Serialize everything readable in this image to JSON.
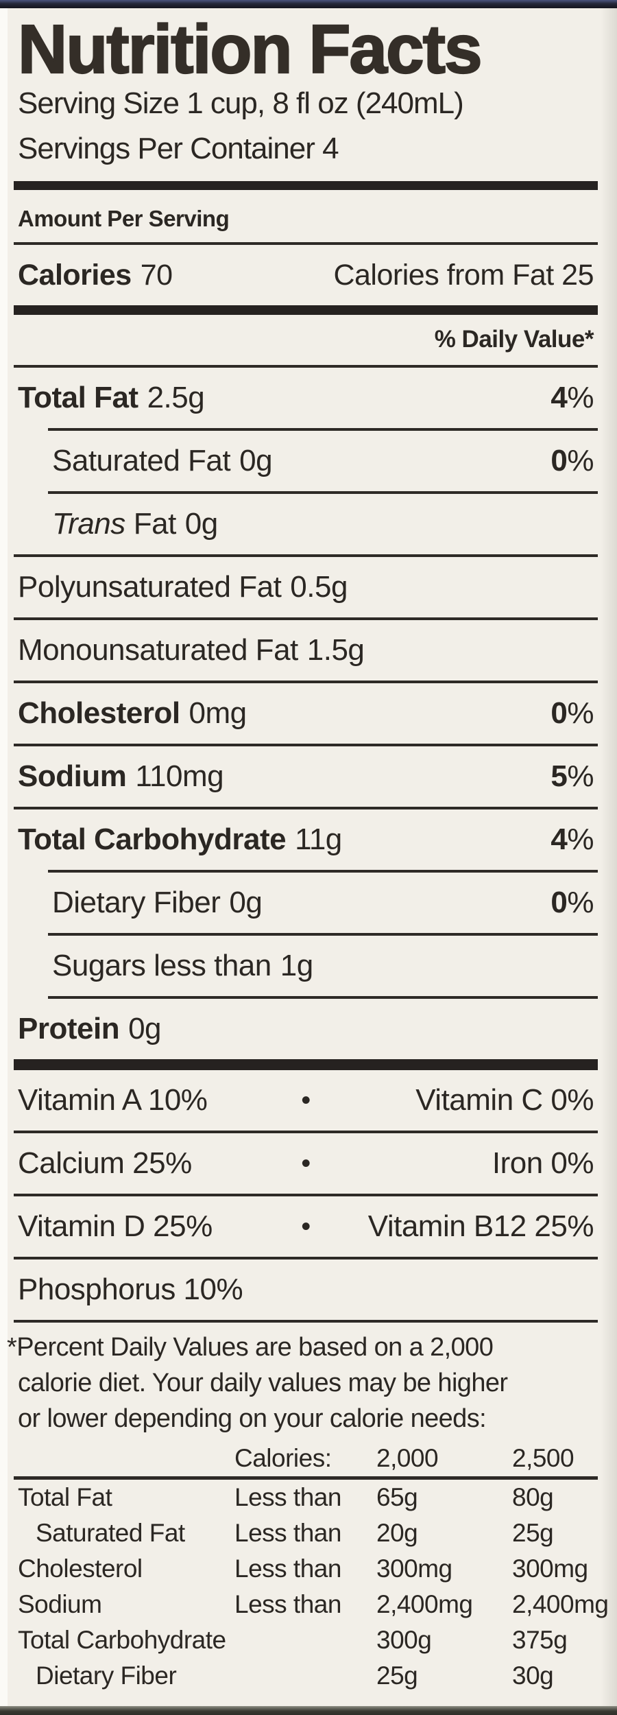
{
  "label": {
    "title": "Nutrition Facts",
    "serving_size": "Serving Size 1 cup, 8 fl oz (240mL)",
    "servings_per_container": "Servings Per Container 4",
    "amount_per_serving": "Amount Per Serving",
    "calories": {
      "label": "Calories",
      "value": "70",
      "from_fat": "Calories from Fat 25"
    },
    "daily_value_header": "% Daily Value*",
    "separator": "•",
    "nutrients": [
      {
        "name": "Total Fat",
        "amount": "2.5g",
        "dv": "4",
        "dv_sym": "%"
      },
      {
        "name": "Saturated Fat",
        "amount": "0g",
        "dv": "0",
        "dv_sym": "%"
      },
      {
        "name_italic": "Trans",
        "name": "Fat",
        "amount": "0g"
      },
      {
        "name": "Polyunsaturated Fat",
        "amount": "0.5g"
      },
      {
        "name": "Monounsaturated Fat",
        "amount": "1.5g"
      },
      {
        "name": "Cholesterol",
        "amount": "0mg",
        "dv": "0",
        "dv_sym": "%"
      },
      {
        "name": "Sodium",
        "amount": "110mg",
        "dv": "5",
        "dv_sym": "%"
      },
      {
        "name": "Total Carbohydrate",
        "amount": "11g",
        "dv": "4",
        "dv_sym": "%"
      },
      {
        "name": "Dietary Fiber",
        "amount": "0g",
        "dv": "0",
        "dv_sym": "%"
      },
      {
        "name": "Sugars less than",
        "amount": "1g"
      },
      {
        "name": "Protein",
        "amount": "0g"
      }
    ],
    "vitamins": [
      {
        "left": "Vitamin A 10%",
        "right": "Vitamin C 0%"
      },
      {
        "left": "Calcium 25%",
        "right": "Iron 0%"
      },
      {
        "left": "Vitamin D 25%",
        "right": "Vitamin B12 25%"
      }
    ],
    "phosphorus": "Phosphorus 10%",
    "footnote_lines": [
      "*Percent Daily Values are based on a 2,000",
      "calorie diet. Your daily values may be higher",
      "or lower depending on your calorie needs:"
    ],
    "dv_table": {
      "header": {
        "calories_label": "Calories:",
        "col_2000": "2,000",
        "col_2500": "2,500"
      },
      "rows": [
        {
          "name": "Total Fat",
          "cond": "Less than",
          "v2000": "65g",
          "v2500": "80g"
        },
        {
          "name": "Saturated Fat",
          "cond": "Less than",
          "v2000": "20g",
          "v2500": "25g"
        },
        {
          "name": "Cholesterol",
          "cond": "Less than",
          "v2000": "300mg",
          "v2500": "300mg"
        },
        {
          "name": "Sodium",
          "cond": "Less than",
          "v2000": "2,400mg",
          "v2500": "2,400mg"
        },
        {
          "name": "Total Carbohydrate",
          "cond": "",
          "v2000": "300g",
          "v2500": "375g"
        },
        {
          "name": "Dietary Fiber",
          "cond": "",
          "v2000": "25g",
          "v2500": "30g"
        }
      ]
    },
    "colors": {
      "label_background": "#f2efe8",
      "text": "#2b2723",
      "rule": "#2e2a26",
      "top_edge": "#252839",
      "bottom_edge": "#3a3a33"
    }
  }
}
